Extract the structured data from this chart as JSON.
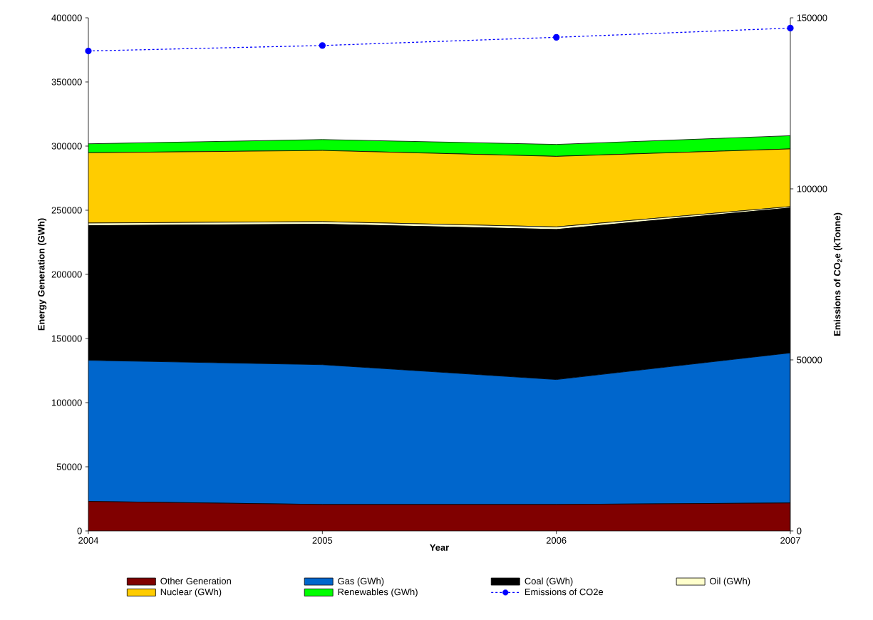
{
  "chart_data": {
    "type": "area",
    "stacked": true,
    "xlabel": "Year",
    "ylabel": "Energy Generation (GWh)",
    "y2label": "Emissions of CO$_{2}$e (kTonne)",
    "x": [
      2004,
      2005,
      2006,
      2007
    ],
    "xlim": [
      2004,
      2007
    ],
    "xticks": [
      2004,
      2005,
      2006,
      2007
    ],
    "ylim": [
      0,
      400000
    ],
    "yticks": [
      0,
      50000,
      100000,
      150000,
      200000,
      250000,
      300000,
      350000,
      400000
    ],
    "y2lim": [
      0,
      150000
    ],
    "y2ticks": [
      0,
      50000,
      100000,
      150000
    ],
    "legend": "bottom",
    "series": [
      {
        "name": "Other Generation",
        "color": "#800000",
        "values": [
          23000,
          20600,
          20600,
          21800
        ]
      },
      {
        "name": "Gas (GWh)",
        "color": "#0066cc",
        "values": [
          110000,
          109000,
          97400,
          117000
        ]
      },
      {
        "name": "Coal (GWh)",
        "color": "#000000",
        "values": [
          105000,
          109500,
          117000,
          113000
        ]
      },
      {
        "name": "Oil (GWh)",
        "color": "#ffffcc",
        "values": [
          2000,
          2000,
          2000,
          1000
        ]
      },
      {
        "name": "Nuclear (GWh)",
        "color": "#ffcc00",
        "values": [
          54800,
          55500,
          55000,
          45000
        ]
      },
      {
        "name": "Renewables (GWh)",
        "color": "#00ff00",
        "values": [
          7000,
          8500,
          9300,
          10300
        ]
      },
      {
        "name": "Emissions of CO2e",
        "color": "#0000ff",
        "type": "line",
        "axis": "y2",
        "marker": "circle",
        "line_style": "dashed",
        "values": [
          140300,
          141900,
          144300,
          147000
        ]
      }
    ]
  }
}
